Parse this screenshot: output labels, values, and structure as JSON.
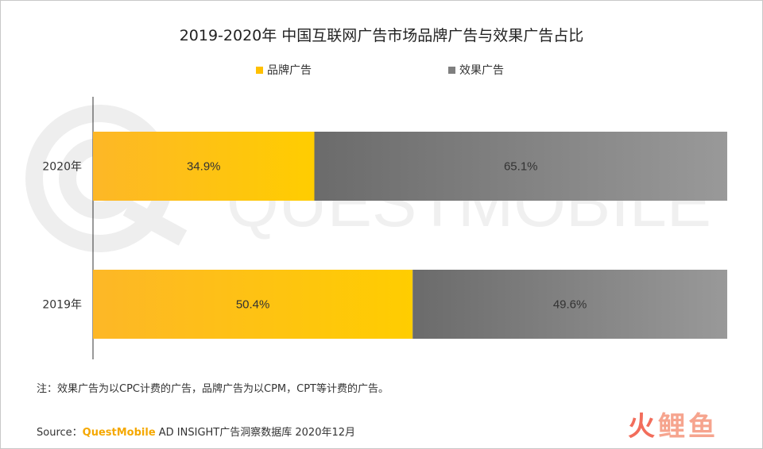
{
  "title": "2019-2020年 中国互联网广告市场品牌广告与效果广告占比",
  "legend": [
    {
      "label": "品牌广告",
      "color": "#ffc000"
    },
    {
      "label": "效果广告",
      "color": "#7f7f7f"
    }
  ],
  "watermark": "QUESTMOBILE",
  "note": "注：效果广告为以CPC计费的广告，品牌广告为以CPM，CPT等计费的广告。",
  "source": {
    "prefix": "Source：",
    "brand": "QuestMobile",
    "suffix": " AD INSIGHT广告洞察数据库 2020年12月"
  },
  "logo_chars": [
    {
      "char": "火",
      "color": "#f26d5b"
    },
    {
      "char": "鲤",
      "color": "#f6a48e"
    },
    {
      "char": "鱼",
      "color": "#f6a48e"
    }
  ],
  "chart_data": {
    "type": "bar",
    "orientation": "horizontal",
    "stacked": true,
    "categories": [
      "2020年",
      "2019年"
    ],
    "series": [
      {
        "name": "品牌广告",
        "values": [
          34.9,
          50.4
        ],
        "labels": [
          "34.9%",
          "50.4%"
        ],
        "color": "#ffc000"
      },
      {
        "name": "效果广告",
        "values": [
          65.1,
          49.6
        ],
        "labels": [
          "65.1%",
          "49.6%"
        ],
        "color": "#7f7f7f"
      }
    ],
    "xlim": [
      0,
      100
    ],
    "grid": false,
    "legend_position": "top"
  }
}
